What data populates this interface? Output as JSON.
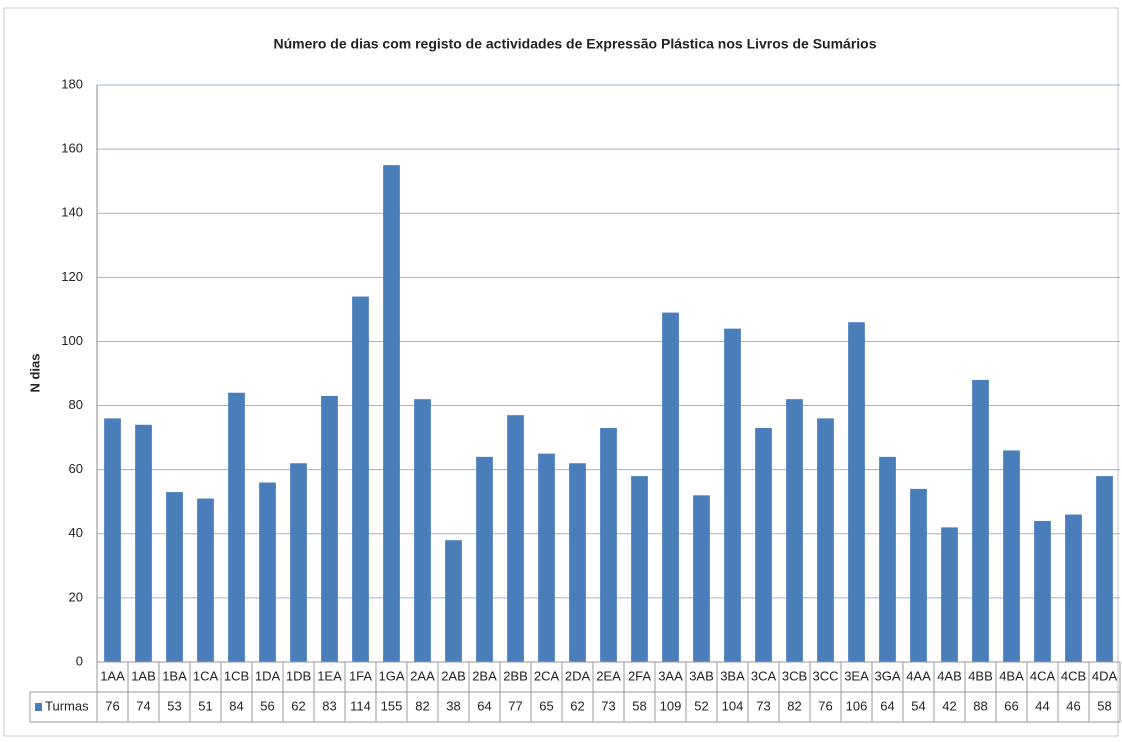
{
  "chart_data": {
    "type": "bar",
    "title": "Número de dias com registo de actividades de Expressão Plástica nos Livros de Sumários",
    "ylabel": "N dias",
    "categories": [
      "1AA",
      "1AB",
      "1BA",
      "1CA",
      "1CB",
      "1DA",
      "1DB",
      "1EA",
      "1FA",
      "1GA",
      "2AA",
      "2AB",
      "2BA",
      "2BB",
      "2CA",
      "2DA",
      "2EA",
      "2FA",
      "3AA",
      "3AB",
      "3BA",
      "3CA",
      "3CB",
      "3CC",
      "3EA",
      "3GA",
      "4AA",
      "4AB",
      "4BB",
      "4BA",
      "4CA",
      "4CB",
      "4DA"
    ],
    "series": [
      {
        "name": "Turmas",
        "color": "#4a7ebb",
        "values": [
          76,
          74,
          53,
          51,
          84,
          56,
          62,
          83,
          114,
          155,
          82,
          38,
          64,
          77,
          65,
          62,
          73,
          58,
          109,
          52,
          104,
          73,
          82,
          76,
          106,
          64,
          54,
          42,
          88,
          66,
          44,
          46,
          58
        ]
      }
    ],
    "ylim": [
      0,
      180
    ],
    "yticks": [
      0,
      20,
      40,
      60,
      80,
      100,
      120,
      140,
      160,
      180
    ],
    "grid": true,
    "data_table": true
  }
}
